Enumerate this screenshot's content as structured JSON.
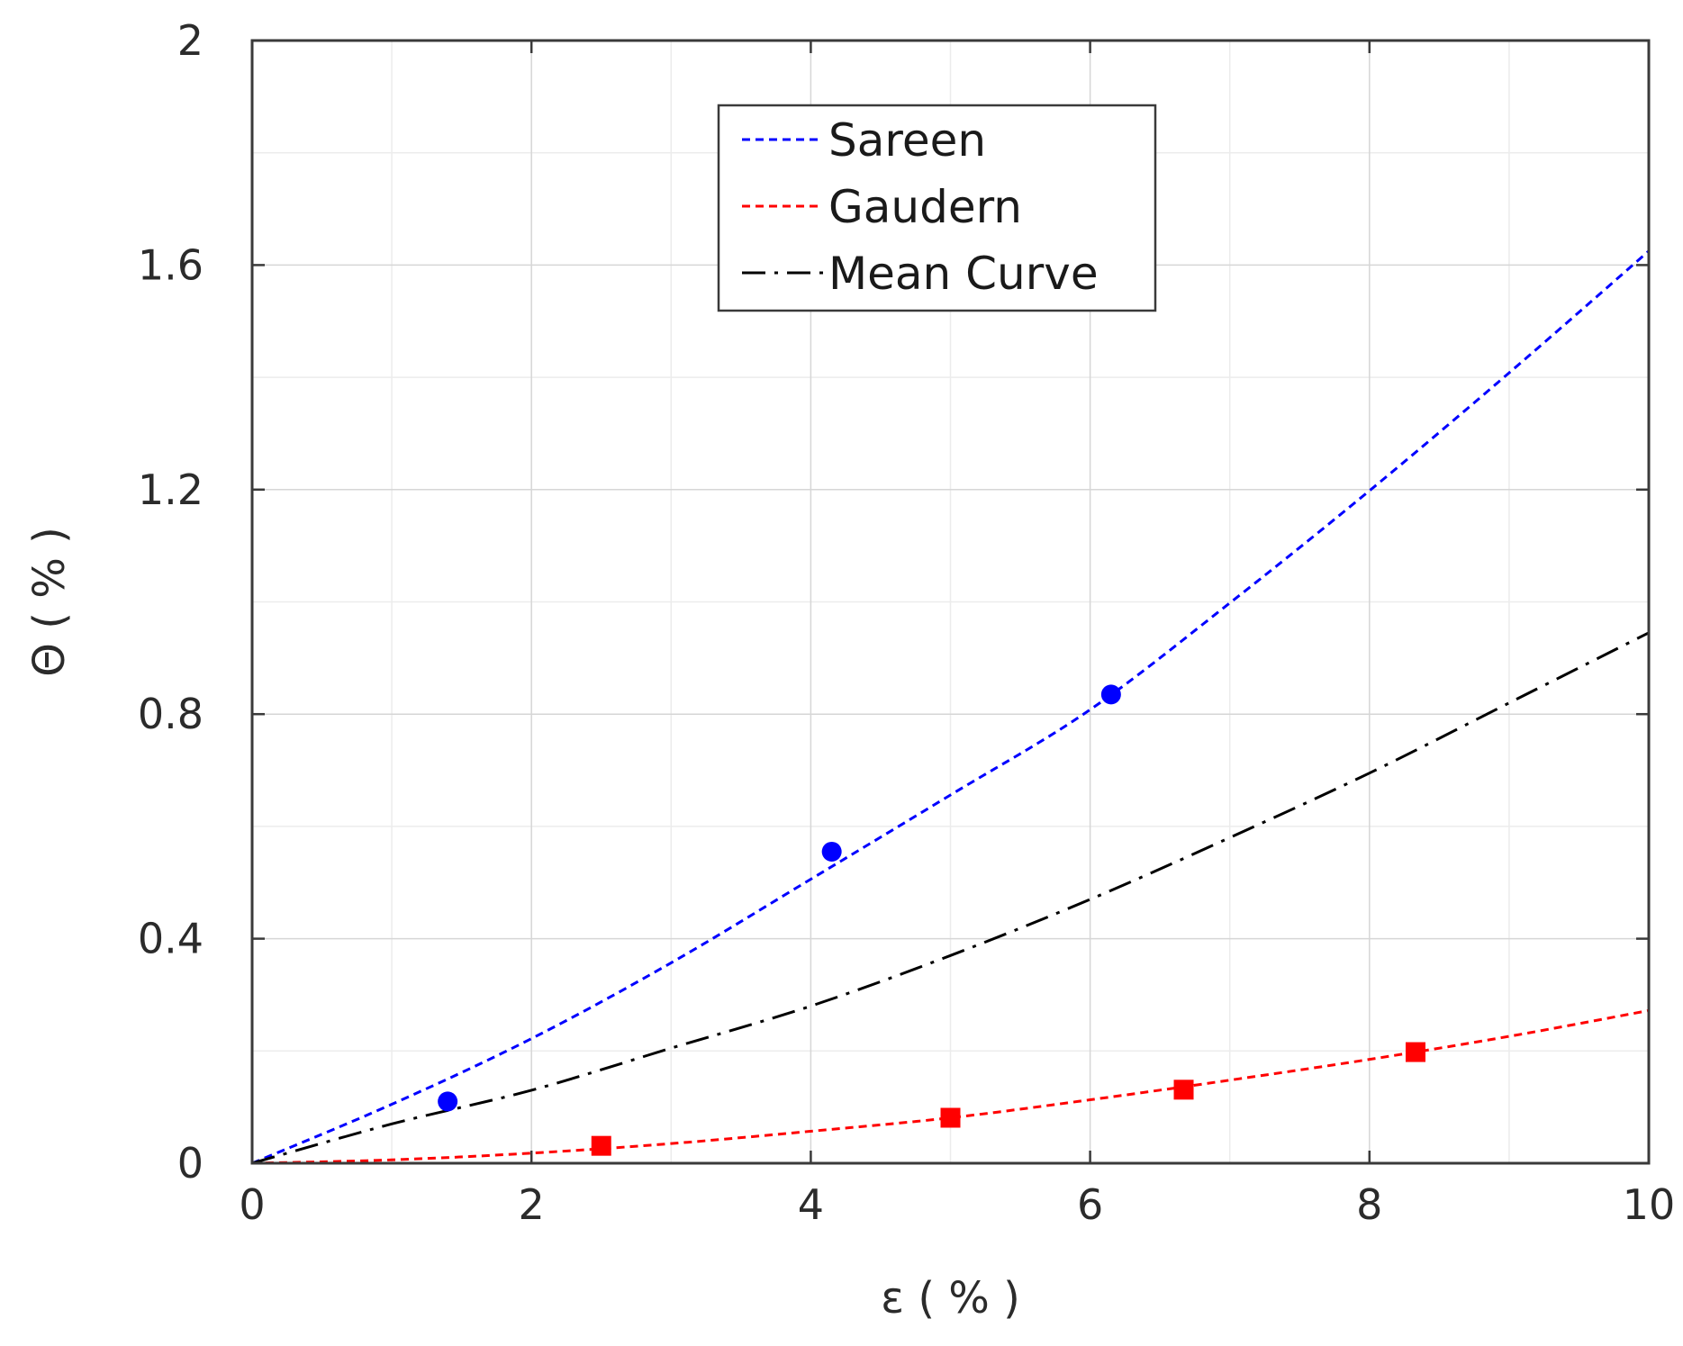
{
  "chart_data": {
    "type": "line",
    "title": "",
    "xlabel": "ε ( % )",
    "ylabel": "Θ ( % )",
    "xlim": [
      0,
      10
    ],
    "ylim": [
      0,
      2
    ],
    "xticks": [
      0,
      2,
      4,
      6,
      8,
      10
    ],
    "xtick_labels": [
      "0",
      "2",
      "4",
      "6",
      "8",
      "10"
    ],
    "yticks": [
      0,
      0.4,
      0.8,
      1.2,
      1.6,
      2
    ],
    "ytick_labels": [
      "0",
      "0.4",
      "0.8",
      "1.2",
      "1.6",
      "2"
    ],
    "grid": true,
    "legend_position": "top-center",
    "series": [
      {
        "name": "Sareen",
        "color": "#0000ff",
        "style": "dashed",
        "curve": {
          "x": [
            0,
            1,
            2,
            3,
            4,
            5,
            6,
            7,
            8,
            9,
            10
          ],
          "y": [
            0,
            0.105,
            0.222,
            0.357,
            0.506,
            0.656,
            0.808,
            0.998,
            1.198,
            1.408,
            1.625
          ]
        },
        "markers": {
          "shape": "circle",
          "x": [
            1.4,
            4.15,
            6.15
          ],
          "y": [
            0.11,
            0.555,
            0.835
          ]
        }
      },
      {
        "name": "Gaudern",
        "color": "#ff0000",
        "style": "dashed",
        "curve": {
          "x": [
            0,
            1,
            2,
            3,
            4,
            5,
            6,
            7,
            8,
            9,
            10
          ],
          "y": [
            0,
            0.006,
            0.018,
            0.035,
            0.057,
            0.081,
            0.113,
            0.148,
            0.185,
            0.226,
            0.272
          ]
        },
        "markers": {
          "shape": "square",
          "x": [
            2.5,
            5.0,
            6.67,
            8.33
          ],
          "y": [
            0.031,
            0.081,
            0.131,
            0.198
          ]
        }
      },
      {
        "name": "Mean Curve",
        "color": "#000000",
        "style": "dashdot",
        "curve": {
          "x": [
            0,
            1,
            2,
            3,
            4,
            5,
            6,
            7,
            8,
            9,
            10
          ],
          "y": [
            0,
            0.07,
            0.13,
            0.205,
            0.28,
            0.37,
            0.47,
            0.58,
            0.695,
            0.82,
            0.945
          ]
        },
        "markers": null
      }
    ]
  }
}
